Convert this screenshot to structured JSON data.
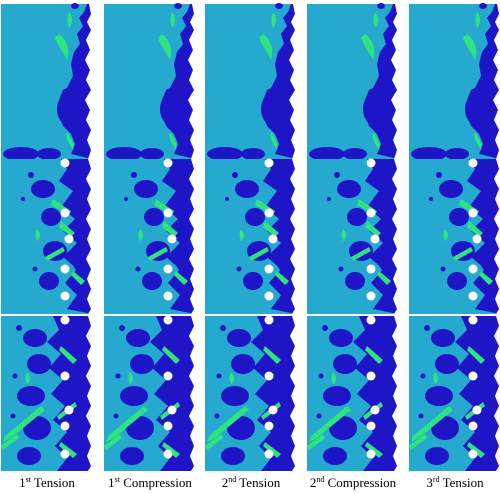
{
  "figure": {
    "colors": {
      "background": "#25a9cf",
      "dark": "#1d15c6",
      "light": "#2fe37f",
      "hole": "#ffffff"
    },
    "rows": [
      "top",
      "middle",
      "bottom"
    ],
    "columns": [
      {
        "ord": "1",
        "sup": "st",
        "word": "Tension"
      },
      {
        "ord": "1",
        "sup": "st",
        "word": "Compression"
      },
      {
        "ord": "2",
        "sup": "nd",
        "word": "Tension"
      },
      {
        "ord": "2",
        "sup": "nd",
        "word": "Compression"
      },
      {
        "ord": "3",
        "sup": "rd",
        "word": "Tension"
      }
    ]
  }
}
